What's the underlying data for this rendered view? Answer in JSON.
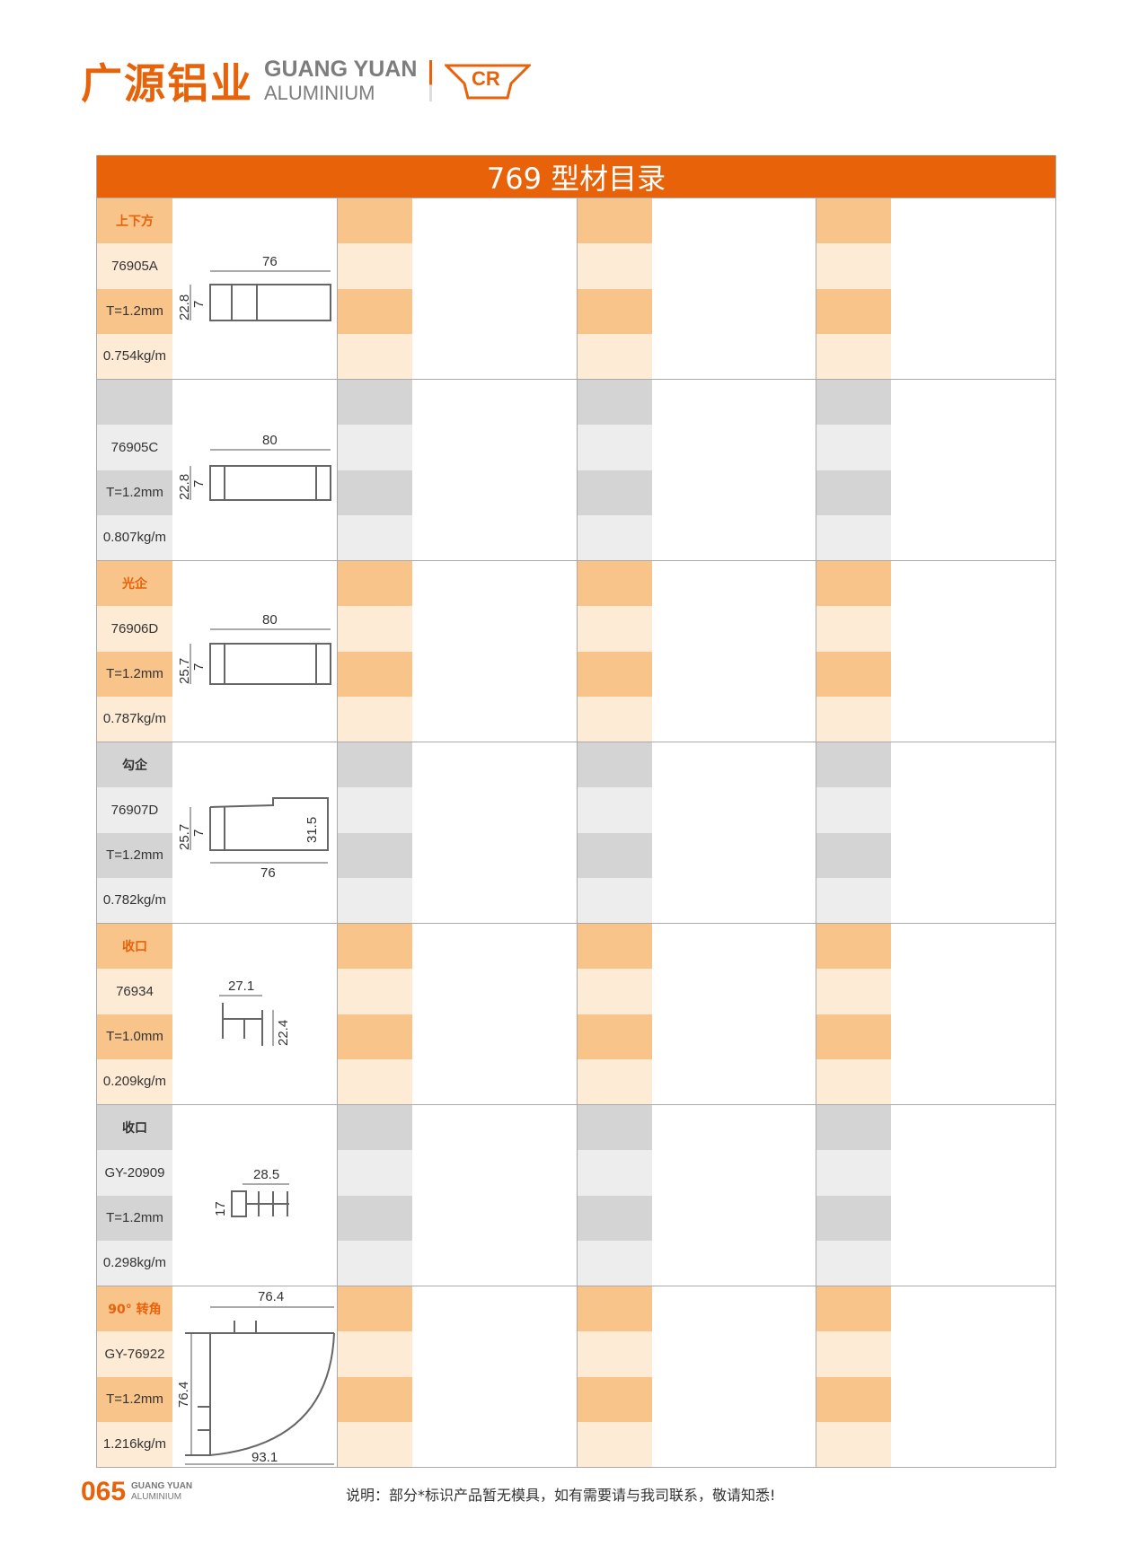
{
  "brand": {
    "cn": "广源铝业",
    "en_top": "GUANG YUAN",
    "en_bottom": "ALUMINIUM",
    "mark": "CR",
    "accent": "#e8620a"
  },
  "table": {
    "title": "769 型材目录"
  },
  "rows": [
    {
      "name": "上下方",
      "code": "76905A",
      "thickness": "T=1.2mm",
      "weight": "0.754kg/m",
      "dims": [
        "76",
        "22.8",
        "7"
      ]
    },
    {
      "name": "",
      "code": "76905C",
      "thickness": "T=1.2mm",
      "weight": "0.807kg/m",
      "dims": [
        "80",
        "22.8",
        "7"
      ]
    },
    {
      "name": "光企",
      "code": "76906D",
      "thickness": "T=1.2mm",
      "weight": "0.787kg/m",
      "dims": [
        "80",
        "25.7",
        "7"
      ]
    },
    {
      "name": "勾企",
      "code": "76907D",
      "thickness": "T=1.2mm",
      "weight": "0.782kg/m",
      "dims": [
        "76",
        "25.7",
        "7",
        "31.5"
      ]
    },
    {
      "name": "收口",
      "code": "76934",
      "thickness": "T=1.0mm",
      "weight": "0.209kg/m",
      "dims": [
        "27.1",
        "22.4"
      ]
    },
    {
      "name": "收口",
      "code": "GY-20909",
      "thickness": "T=1.2mm",
      "weight": "0.298kg/m",
      "dims": [
        "28.5",
        "17"
      ]
    },
    {
      "name": "90° 转角",
      "code": "GY-76922",
      "thickness": "T=1.2mm",
      "weight": "1.216kg/m",
      "dims": [
        "76.4",
        "76.4",
        "93.1"
      ]
    }
  ],
  "footer": {
    "page": "065",
    "brand_top": "GUANG YUAN",
    "brand_bottom": "ALUMINIUM",
    "note": "说明：部分*标识产品暂无模具，如有需要请与我司联系，敬请知悉!"
  }
}
